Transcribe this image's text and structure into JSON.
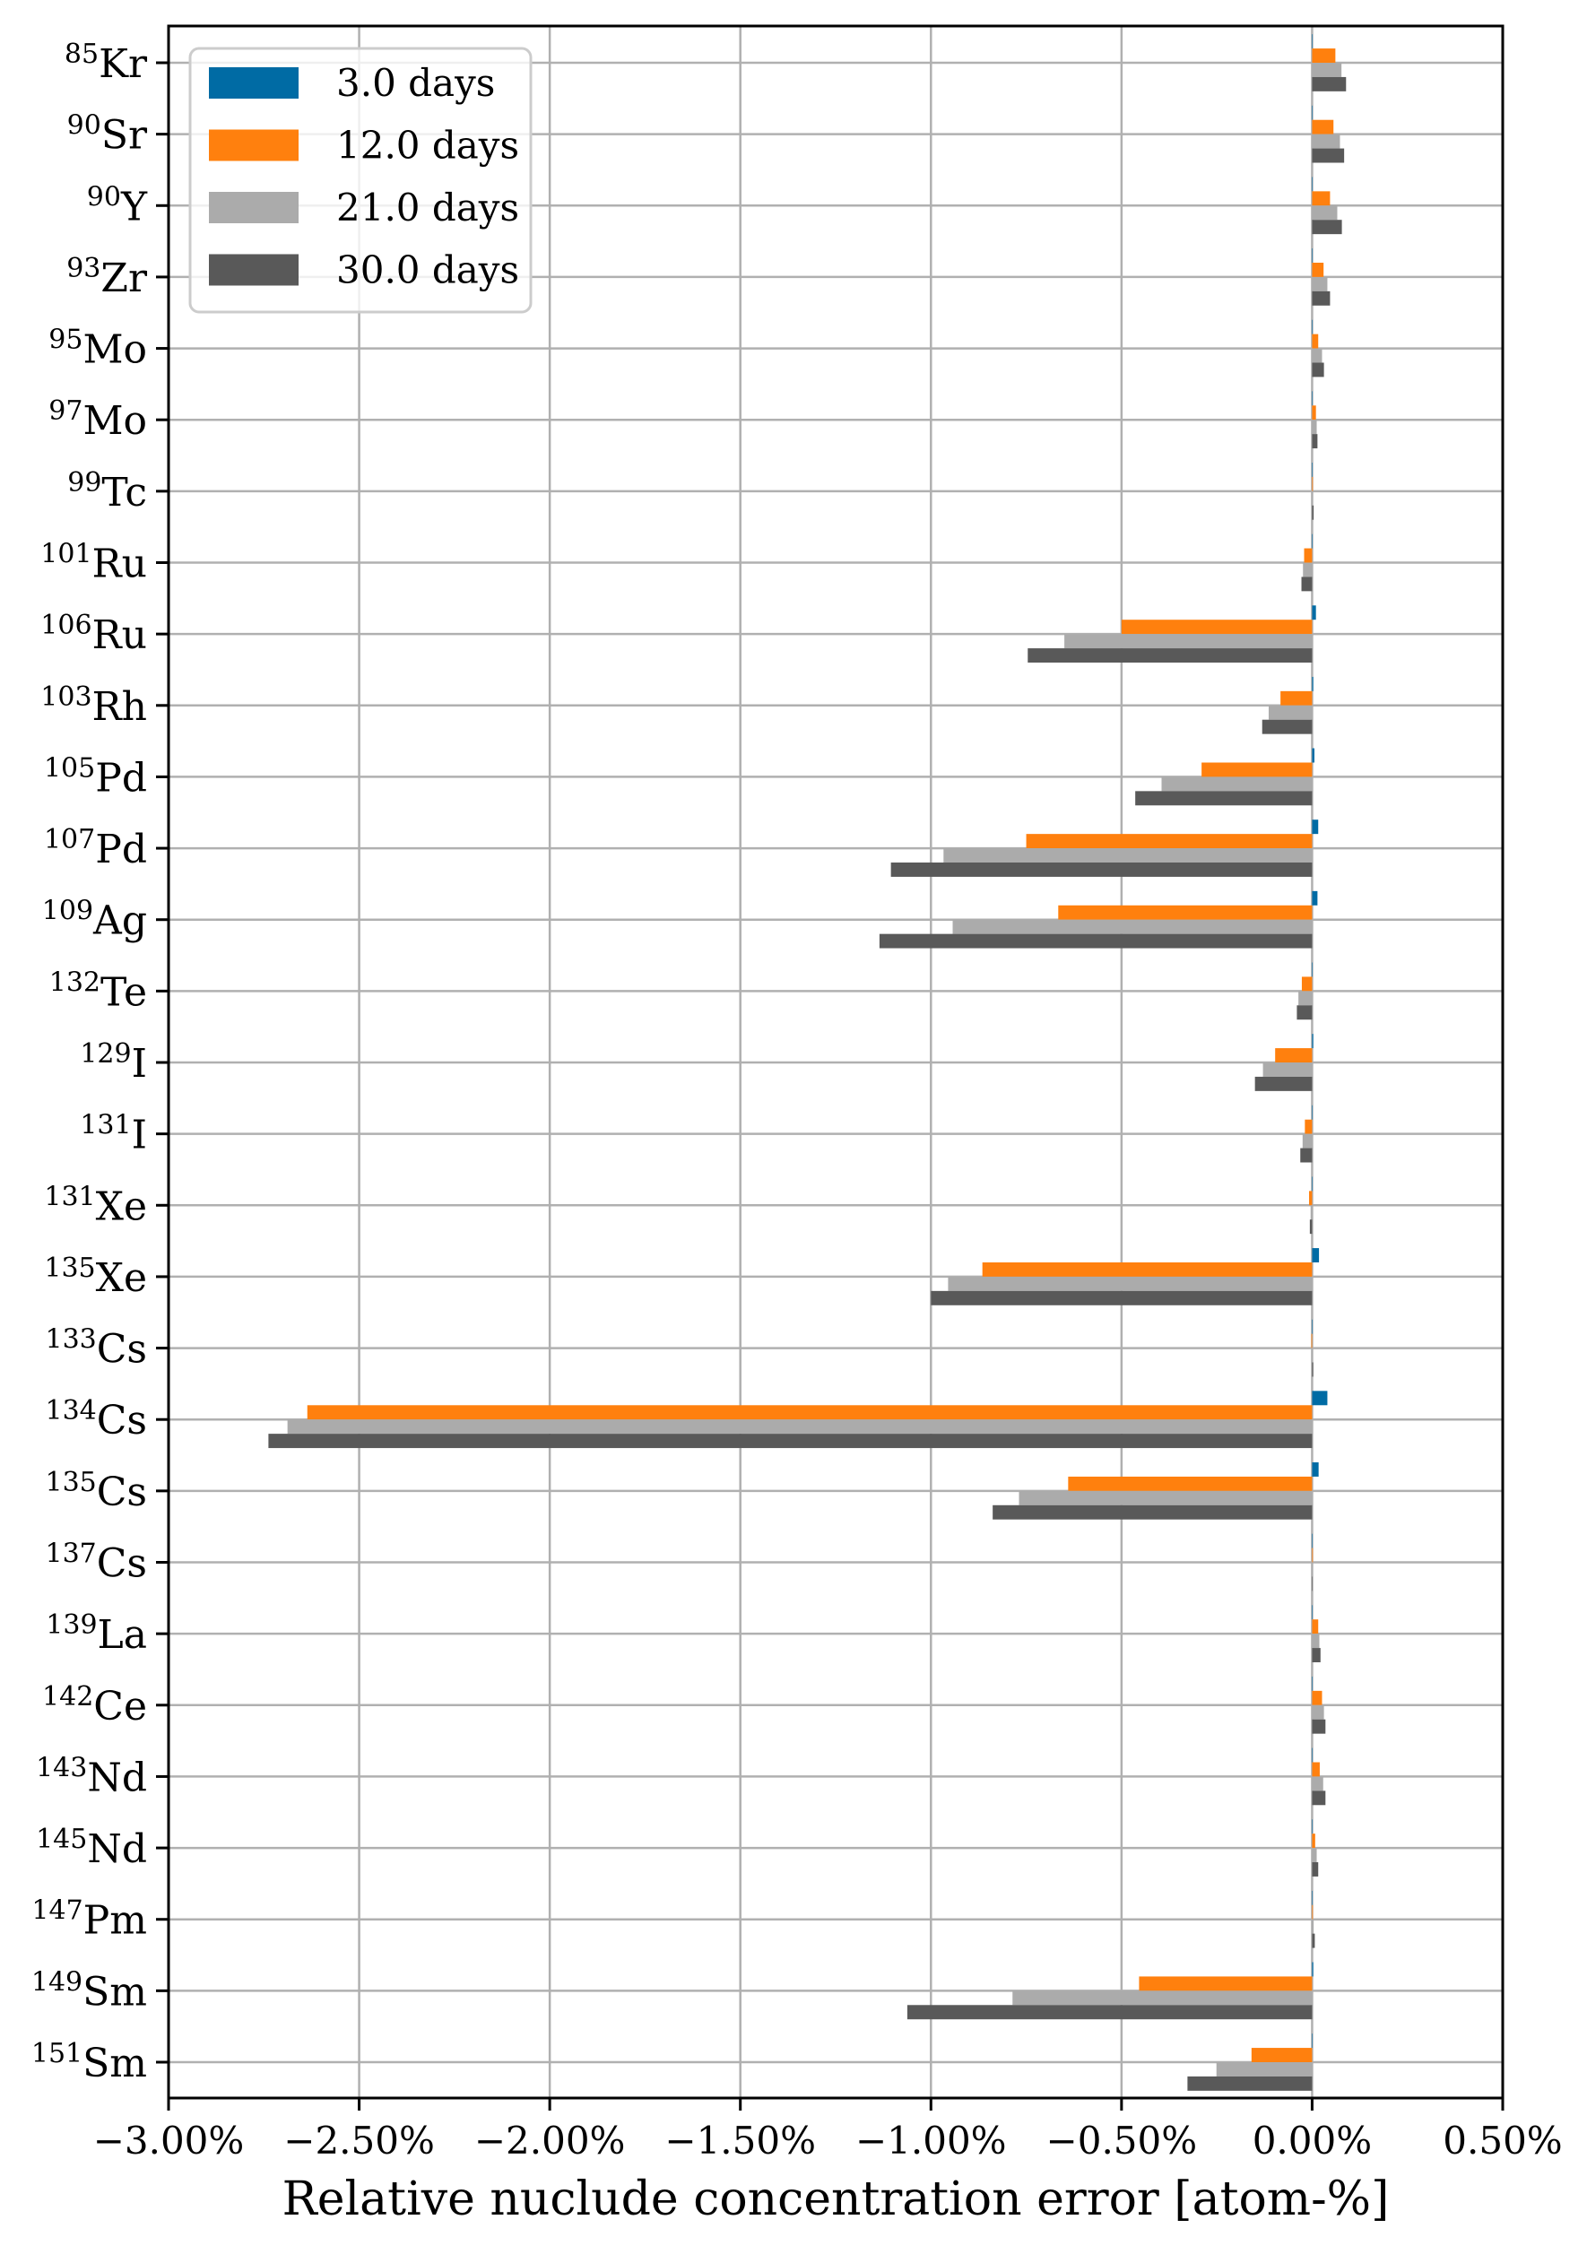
{
  "chart_data": {
    "type": "bar",
    "orientation": "horizontal",
    "title": "",
    "xlabel": "Relative nuclude concentration error [atom-%]",
    "ylabel": "",
    "xlim": [
      -3.0,
      0.5
    ],
    "x_unit": "%",
    "xticks": [
      -3.0,
      -2.5,
      -2.0,
      -1.5,
      -1.0,
      -0.5,
      0.0,
      0.5
    ],
    "xtick_labels": [
      "−3.00%",
      "−2.50%",
      "−2.00%",
      "−1.50%",
      "−1.00%",
      "−0.50%",
      "0.00%",
      "0.50%"
    ],
    "grid": true,
    "legend_position": "upper left",
    "categories": [
      {
        "mass": "85",
        "element": "Kr"
      },
      {
        "mass": "90",
        "element": "Sr"
      },
      {
        "mass": "90",
        "element": "Y"
      },
      {
        "mass": "93",
        "element": "Zr"
      },
      {
        "mass": "95",
        "element": "Mo"
      },
      {
        "mass": "97",
        "element": "Mo"
      },
      {
        "mass": "99",
        "element": "Tc"
      },
      {
        "mass": "101",
        "element": "Ru"
      },
      {
        "mass": "106",
        "element": "Ru"
      },
      {
        "mass": "103",
        "element": "Rh"
      },
      {
        "mass": "105",
        "element": "Pd"
      },
      {
        "mass": "107",
        "element": "Pd"
      },
      {
        "mass": "109",
        "element": "Ag"
      },
      {
        "mass": "132",
        "element": "Te"
      },
      {
        "mass": "129",
        "element": "I"
      },
      {
        "mass": "131",
        "element": "I"
      },
      {
        "mass": "131",
        "element": "Xe"
      },
      {
        "mass": "135",
        "element": "Xe"
      },
      {
        "mass": "133",
        "element": "Cs"
      },
      {
        "mass": "134",
        "element": "Cs"
      },
      {
        "mass": "135",
        "element": "Cs"
      },
      {
        "mass": "137",
        "element": "Cs"
      },
      {
        "mass": "139",
        "element": "La"
      },
      {
        "mass": "142",
        "element": "Ce"
      },
      {
        "mass": "143",
        "element": "Nd"
      },
      {
        "mass": "145",
        "element": "Nd"
      },
      {
        "mass": "147",
        "element": "Pm"
      },
      {
        "mass": "149",
        "element": "Sm"
      },
      {
        "mass": "151",
        "element": "Sm"
      }
    ],
    "series": [
      {
        "name": "3.0 days",
        "color": "#006BA4",
        "values": [
          0.001,
          0.001,
          0.001,
          0.001,
          0.0,
          0.0,
          0.0,
          0.0,
          0.01,
          0.003,
          0.006,
          0.016,
          0.014,
          0.0,
          0.003,
          0.0,
          0.0,
          0.018,
          0.0,
          0.04,
          0.017,
          0.0,
          0.0,
          0.001,
          0.001,
          0.0,
          0.0,
          0.003,
          0.001
        ]
      },
      {
        "name": "12.0 days",
        "color": "#FF800E",
        "values": [
          0.061,
          0.056,
          0.047,
          0.03,
          0.016,
          0.01,
          0.002,
          -0.021,
          -0.5,
          -0.083,
          -0.29,
          -0.75,
          -0.666,
          -0.027,
          -0.097,
          -0.019,
          -0.008,
          -0.865,
          -0.002,
          -2.636,
          -0.64,
          0.002,
          0.016,
          0.026,
          0.02,
          0.008,
          0.002,
          -0.454,
          -0.159
        ]
      },
      {
        "name": "21.0 days",
        "color": "#ABABAB",
        "values": [
          0.077,
          0.073,
          0.066,
          0.04,
          0.026,
          0.012,
          0.002,
          -0.024,
          -0.65,
          -0.114,
          -0.395,
          -0.967,
          -0.943,
          -0.036,
          -0.129,
          -0.025,
          -0.004,
          -0.955,
          0.001,
          -2.688,
          -0.769,
          0.001,
          0.019,
          0.031,
          0.029,
          0.012,
          0.004,
          -0.786,
          -0.251
        ]
      },
      {
        "name": "30.0 days",
        "color": "#595959",
        "values": [
          0.089,
          0.084,
          0.078,
          0.047,
          0.031,
          0.014,
          0.004,
          -0.028,
          -0.746,
          -0.131,
          -0.464,
          -1.105,
          -1.135,
          -0.04,
          -0.15,
          -0.031,
          -0.006,
          -1.0,
          0.003,
          -2.738,
          -0.838,
          0.001,
          0.022,
          0.035,
          0.035,
          0.016,
          0.007,
          -1.062,
          -0.327
        ]
      }
    ]
  },
  "legend": {
    "items": [
      {
        "label": "3.0 days",
        "color": "#006BA4"
      },
      {
        "label": "12.0 days",
        "color": "#FF800E"
      },
      {
        "label": "21.0 days",
        "color": "#ABABAB"
      },
      {
        "label": "30.0 days",
        "color": "#595959"
      }
    ]
  },
  "axes": {
    "xlabel": "Relative nuclude concentration error [atom-%]"
  }
}
